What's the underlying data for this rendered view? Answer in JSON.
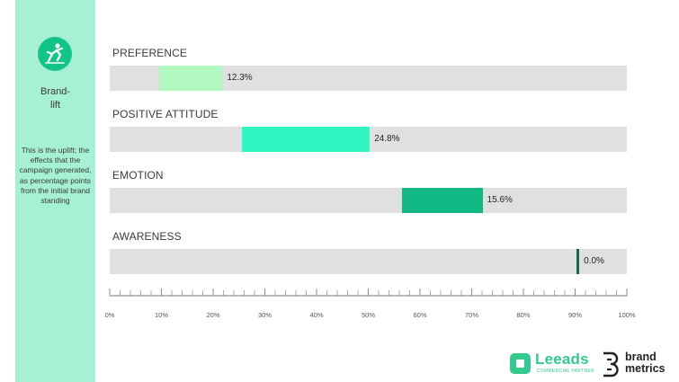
{
  "sidebar": {
    "icon": "brand-lift-icon",
    "title_line1": "Brand-",
    "title_line2": "lift",
    "description": "This is the uplift; the effects that the campaign generated, as percentage points from the initial brand standing"
  },
  "chart_data": {
    "type": "bar",
    "orientation": "horizontal",
    "xlim": [
      0,
      100
    ],
    "x_ticks": [
      "0%",
      "10%",
      "20%",
      "30%",
      "40%",
      "50%",
      "60%",
      "70%",
      "80%",
      "90%",
      "100%"
    ],
    "bars": [
      {
        "label": "PREFERENCE",
        "start": 9.5,
        "value": 12.3,
        "value_label": "12.3%",
        "color": "#b0f7c0"
      },
      {
        "label": "POSITIVE ATTITUDE",
        "start": 25.5,
        "value": 24.8,
        "value_label": "24.8%",
        "color": "#2ef5c2"
      },
      {
        "label": "EMOTION",
        "start": 56.5,
        "value": 15.6,
        "value_label": "15.6%",
        "color": "#12b883"
      },
      {
        "label": "AWARENESS",
        "start": 90.2,
        "value": 0.0,
        "value_label": "0.0%",
        "color": "#0f6b49"
      }
    ],
    "track_color": "#e0e0e0",
    "grid": false
  },
  "logos": {
    "leeads_name": "Leeads",
    "leeads_sub": "COMMERCIAL PARTNER",
    "brandmetrics_line1": "brand",
    "brandmetrics_line2": "metrics"
  }
}
